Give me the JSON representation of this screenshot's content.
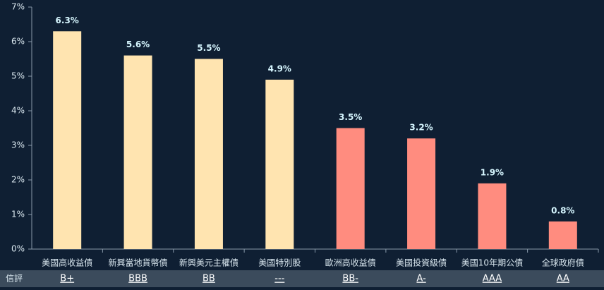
{
  "chart_data": {
    "type": "bar",
    "categories": [
      "美國高收益債",
      "新興當地貨幣債",
      "新興美元主權債",
      "美國特別股",
      "歐洲高收益債",
      "美國投資級債",
      "美國10年期公債",
      "全球政府債"
    ],
    "values": [
      6.3,
      5.6,
      5.5,
      4.9,
      3.5,
      3.2,
      1.9,
      0.8
    ],
    "value_labels": [
      "6.3%",
      "5.6%",
      "5.5%",
      "4.9%",
      "3.5%",
      "3.2%",
      "1.9%",
      "0.8%"
    ],
    "colors": [
      "#ffe4b0",
      "#ffe4b0",
      "#ffe4b0",
      "#ffe4b0",
      "#ff8c7f",
      "#ff8c7f",
      "#ff8c7f",
      "#ff8c7f"
    ],
    "ylim": [
      0,
      7
    ],
    "yticks": [
      {
        "value": 0,
        "label": "0%"
      },
      {
        "value": 1,
        "label": "1%"
      },
      {
        "value": 2,
        "label": "2%"
      },
      {
        "value": 3,
        "label": "3%"
      },
      {
        "value": 4,
        "label": "4%"
      },
      {
        "value": 5,
        "label": "5%"
      },
      {
        "value": 6,
        "label": "6%"
      },
      {
        "value": 7,
        "label": "7%"
      }
    ],
    "grid": false,
    "ratings_label": "信評",
    "ratings": [
      "B+",
      "BBB",
      "BB",
      "---",
      "BB-",
      "A-",
      "AAA",
      "AA"
    ]
  }
}
